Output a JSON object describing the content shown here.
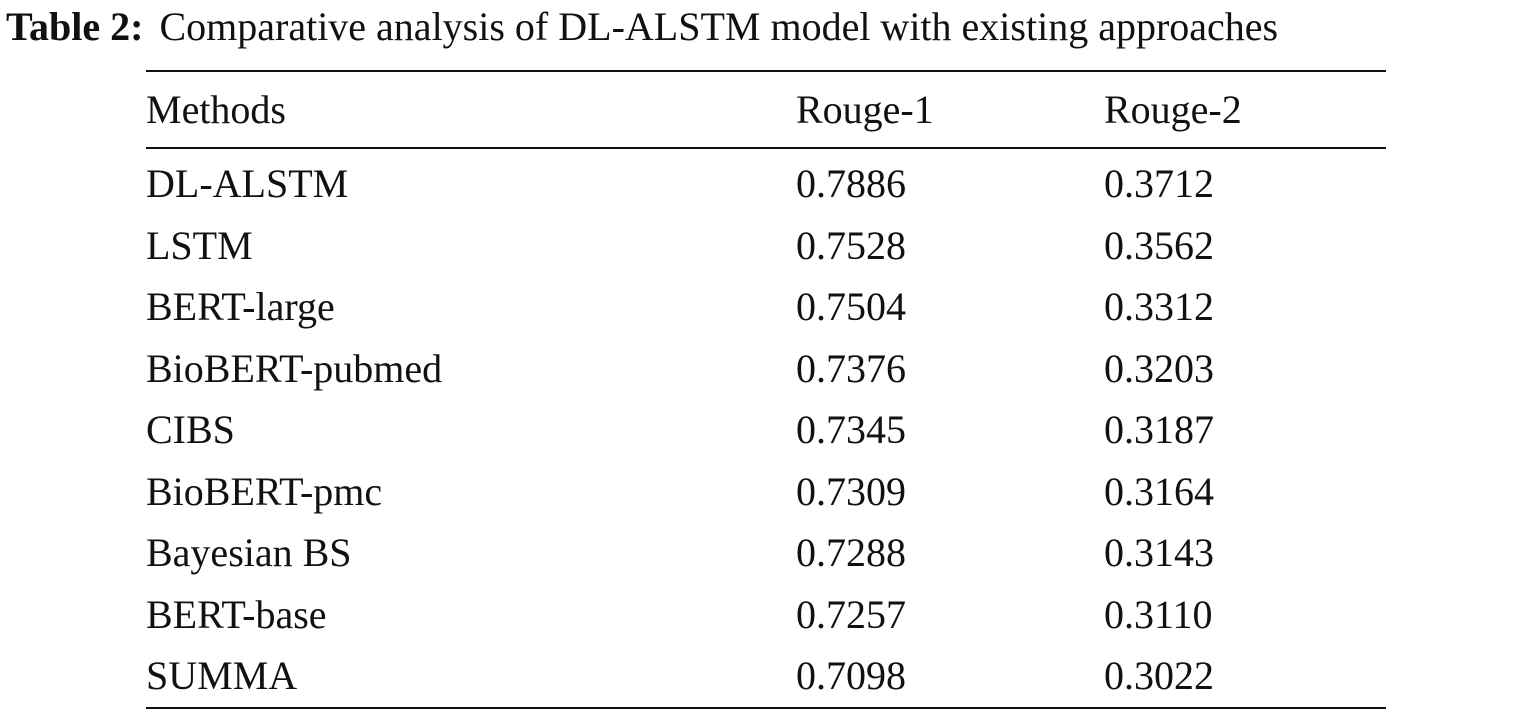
{
  "caption": {
    "label": "Table 2:",
    "text": "Comparative analysis of DL-ALSTM model with existing approaches"
  },
  "table": {
    "headers": [
      "Methods",
      "Rouge-1",
      "Rouge-2"
    ],
    "rows": [
      [
        "DL-ALSTM",
        "0.7886",
        "0.3712"
      ],
      [
        "LSTM",
        "0.7528",
        "0.3562"
      ],
      [
        "BERT-large",
        "0.7504",
        "0.3312"
      ],
      [
        "BioBERT-pubmed",
        "0.7376",
        "0.3203"
      ],
      [
        "CIBS",
        "0.7345",
        "0.3187"
      ],
      [
        "BioBERT-pmc",
        "0.7309",
        "0.3164"
      ],
      [
        "Bayesian BS",
        "0.7288",
        "0.3143"
      ],
      [
        "BERT-base",
        "0.7257",
        "0.3110"
      ],
      [
        "SUMMA",
        "0.7098",
        "0.3022"
      ]
    ]
  }
}
